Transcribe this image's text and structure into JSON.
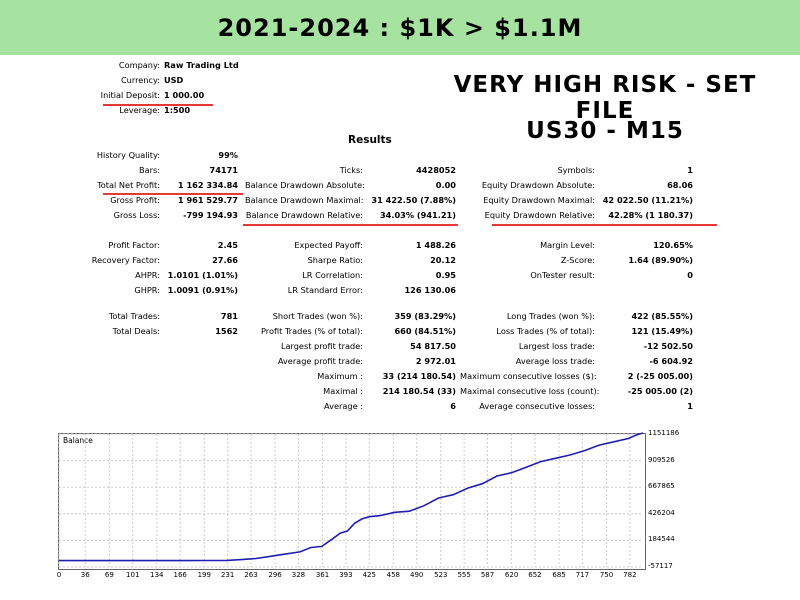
{
  "banner": {
    "title": "2021-2024 : $1K > $1.1M"
  },
  "headline": {
    "line1": "VERY HIGH RISK - SET FILE",
    "line2": "US30 - M15"
  },
  "report": {
    "results_heading": "Results",
    "info": [
      {
        "label": "Company:",
        "value": "Raw Trading Ltd"
      },
      {
        "label": "Currency:",
        "value": "USD"
      },
      {
        "label": "Initial Deposit:",
        "value": "1 000.00"
      },
      {
        "label": "Leverage:",
        "value": "1:500"
      }
    ],
    "col1": [
      {
        "label": "History Quality:",
        "value": "99%"
      },
      {
        "label": "Bars:",
        "value": "74171"
      },
      {
        "label": "Total Net Profit:",
        "value": "1 162 334.84"
      },
      {
        "label": "Gross Profit:",
        "value": "1 961 529.77"
      },
      {
        "label": "Gross Loss:",
        "value": "-799 194.93"
      },
      {
        "label": "Profit Factor:",
        "value": "2.45"
      },
      {
        "label": "Recovery Factor:",
        "value": "27.66"
      },
      {
        "label": "AHPR:",
        "value": "1.0101 (1.01%)"
      },
      {
        "label": "GHPR:",
        "value": "1.0091 (0.91%)"
      },
      {
        "label": "Total Trades:",
        "value": "781"
      },
      {
        "label": "Total Deals:",
        "value": "1562"
      }
    ],
    "col2": [
      {
        "label": "Ticks:",
        "value": "4428052"
      },
      {
        "label": "Balance Drawdown Absolute:",
        "value": "0.00"
      },
      {
        "label": "Balance Drawdown Maximal:",
        "value": "31 422.50 (7.88%)"
      },
      {
        "label": "Balance Drawdown Relative:",
        "value": "34.03% (941.21)"
      },
      {
        "label": "Expected Payoff:",
        "value": "1 488.26"
      },
      {
        "label": "Sharpe Ratio:",
        "value": "20.12"
      },
      {
        "label": "LR Correlation:",
        "value": "0.95"
      },
      {
        "label": "LR Standard Error:",
        "value": "126 130.06"
      },
      {
        "label": "Short Trades (won %):",
        "value": "359 (83.29%)"
      },
      {
        "label": "Profit Trades (% of total):",
        "value": "660 (84.51%)"
      },
      {
        "label": "Largest profit trade:",
        "value": "54 817.50"
      },
      {
        "label": "Average profit trade:",
        "value": "2 972.01"
      },
      {
        "label": "Maximum :",
        "value": "33 (214 180.54)"
      },
      {
        "label": "Maximal :",
        "value": "214 180.54 (33)"
      },
      {
        "label": "Average :",
        "value": "6"
      }
    ],
    "col3": [
      {
        "label": "Symbols:",
        "value": "1"
      },
      {
        "label": "Equity Drawdown Absolute:",
        "value": "68.06"
      },
      {
        "label": "Equity Drawdown Maximal:",
        "value": "42 022.50 (11.21%)"
      },
      {
        "label": "Equity Drawdown Relative:",
        "value": "42.28% (1 180.37)"
      },
      {
        "label": "Margin Level:",
        "value": "120.65%"
      },
      {
        "label": "Z-Score:",
        "value": "1.64 (89.90%)"
      },
      {
        "label": "OnTester result:",
        "value": "0"
      },
      {
        "label": "Long Trades (won %):",
        "value": "422 (85.55%)"
      },
      {
        "label": "Loss Trades (% of total):",
        "value": "121 (15.49%)"
      },
      {
        "label": "Largest loss trade:",
        "value": "-12 502.50"
      },
      {
        "label": "Average loss trade:",
        "value": "-6 604.92"
      },
      {
        "label": "Maximum consecutive losses ($):",
        "value": "2 (-25 005.00)"
      },
      {
        "label": "Maximal consecutive loss (count):",
        "value": "-25 005.00 (2)"
      },
      {
        "label": "Average consecutive losses:",
        "value": "1"
      }
    ]
  },
  "colors": {
    "banner": "#a6e3a1",
    "underline": "#e53935",
    "series": "#1f1fb4"
  },
  "chart_data": {
    "type": "line",
    "title": "Balance",
    "xticks": [
      0,
      36,
      69,
      101,
      134,
      166,
      199,
      231,
      263,
      296,
      328,
      361,
      393,
      425,
      458,
      490,
      523,
      555,
      587,
      620,
      652,
      685,
      717,
      750,
      782
    ],
    "yticks": [
      -57117,
      184544,
      426204,
      667865,
      909526,
      1151186
    ],
    "xlim": [
      0,
      800
    ],
    "ylim": [
      -57117,
      1151186
    ],
    "series": [
      {
        "x": [
          0,
          60,
          120,
          180,
          200,
          230,
          250,
          270,
          290,
          310,
          330,
          345,
          360,
          375,
          385,
          395,
          405,
          415,
          425,
          440,
          460,
          480,
          500,
          520,
          540,
          560,
          580,
          600,
          620,
          640,
          660,
          680,
          700,
          720,
          740,
          760,
          780,
          790,
          800
        ],
        "y": [
          1000,
          1000,
          1000,
          1000,
          1500,
          3000,
          10000,
          20000,
          40000,
          60000,
          80000,
          120000,
          130000,
          200000,
          250000,
          270000,
          340000,
          380000,
          400000,
          410000,
          440000,
          450000,
          500000,
          570000,
          600000,
          660000,
          700000,
          770000,
          800000,
          850000,
          900000,
          930000,
          960000,
          1000000,
          1050000,
          1080000,
          1110000,
          1140000,
          1160000
        ]
      }
    ]
  }
}
